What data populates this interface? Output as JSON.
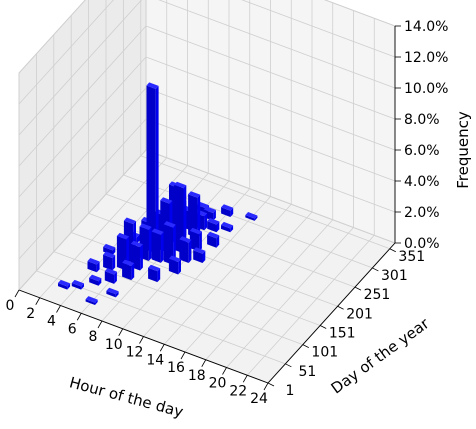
{
  "chart_data": {
    "type": "bar3d",
    "xlabel": "Hour of the day",
    "ylabel": "Day of the year",
    "zlabel": "Frequency",
    "x_ticks": [
      "0",
      "2",
      "4",
      "6",
      "8",
      "10",
      "12",
      "14",
      "16",
      "18",
      "20",
      "22",
      "24"
    ],
    "y_ticks": [
      "1",
      "51",
      "101",
      "151",
      "201",
      "251",
      "301",
      "351"
    ],
    "z_ticks": [
      "0.0%",
      "2.0%",
      "4.0%",
      "6.0%",
      "8.0%",
      "10.0%",
      "12.0%",
      "14.0%"
    ],
    "xlim": [
      0,
      24
    ],
    "ylim": [
      1,
      366
    ],
    "zlim": [
      0,
      14
    ],
    "bar_color": "#0000ee",
    "bars": [
      {
        "hour": 7,
        "day": 176,
        "value": 10.6
      },
      {
        "hour": 8,
        "day": 186,
        "value": 3.2
      },
      {
        "hour": 8,
        "day": 211,
        "value": 3.6
      },
      {
        "hour": 9,
        "day": 196,
        "value": 4.2
      },
      {
        "hour": 8,
        "day": 226,
        "value": 2.2
      },
      {
        "hour": 9,
        "day": 236,
        "value": 2.6
      },
      {
        "hour": 7,
        "day": 156,
        "value": 2.0
      },
      {
        "hour": 6,
        "day": 141,
        "value": 2.5
      },
      {
        "hour": 6,
        "day": 121,
        "value": 2.0
      },
      {
        "hour": 7,
        "day": 131,
        "value": 1.5
      },
      {
        "hour": 8,
        "day": 161,
        "value": 1.8
      },
      {
        "hour": 9,
        "day": 166,
        "value": 2.4
      },
      {
        "hour": 10,
        "day": 181,
        "value": 1.3
      },
      {
        "hour": 8,
        "day": 246,
        "value": 1.2
      },
      {
        "hour": 9,
        "day": 256,
        "value": 0.9
      },
      {
        "hour": 7,
        "day": 201,
        "value": 1.8
      },
      {
        "hour": 6,
        "day": 191,
        "value": 1.3
      },
      {
        "hour": 5,
        "day": 151,
        "value": 1.0
      },
      {
        "hour": 5,
        "day": 111,
        "value": 0.8
      },
      {
        "hour": 4,
        "day": 96,
        "value": 0.5
      },
      {
        "hour": 6,
        "day": 86,
        "value": 0.6
      },
      {
        "hour": 7,
        "day": 106,
        "value": 0.9
      },
      {
        "hour": 10,
        "day": 211,
        "value": 1.1
      },
      {
        "hour": 10,
        "day": 151,
        "value": 0.8
      },
      {
        "hour": 11,
        "day": 231,
        "value": 0.6
      },
      {
        "hour": 9,
        "day": 281,
        "value": 0.5
      },
      {
        "hour": 10,
        "day": 301,
        "value": 0.4
      },
      {
        "hour": 5,
        "day": 71,
        "value": 0.3
      },
      {
        "hour": 4,
        "day": 51,
        "value": 0.2
      },
      {
        "hour": 3,
        "day": 41,
        "value": 0.2
      },
      {
        "hour": 6,
        "day": 31,
        "value": 0.15
      },
      {
        "hour": 8,
        "day": 291,
        "value": 0.3
      },
      {
        "hour": 11,
        "day": 271,
        "value": 0.25
      },
      {
        "hour": 12,
        "day": 311,
        "value": 0.15
      },
      {
        "hour": 11,
        "day": 191,
        "value": 0.6
      },
      {
        "hour": 5,
        "day": 181,
        "value": 0.4
      },
      {
        "hour": 4,
        "day": 141,
        "value": 0.3
      },
      {
        "hour": 7,
        "day": 61,
        "value": 0.2
      },
      {
        "hour": 9,
        "day": 121,
        "value": 0.7
      },
      {
        "hour": 10,
        "day": 261,
        "value": 0.5
      }
    ]
  }
}
